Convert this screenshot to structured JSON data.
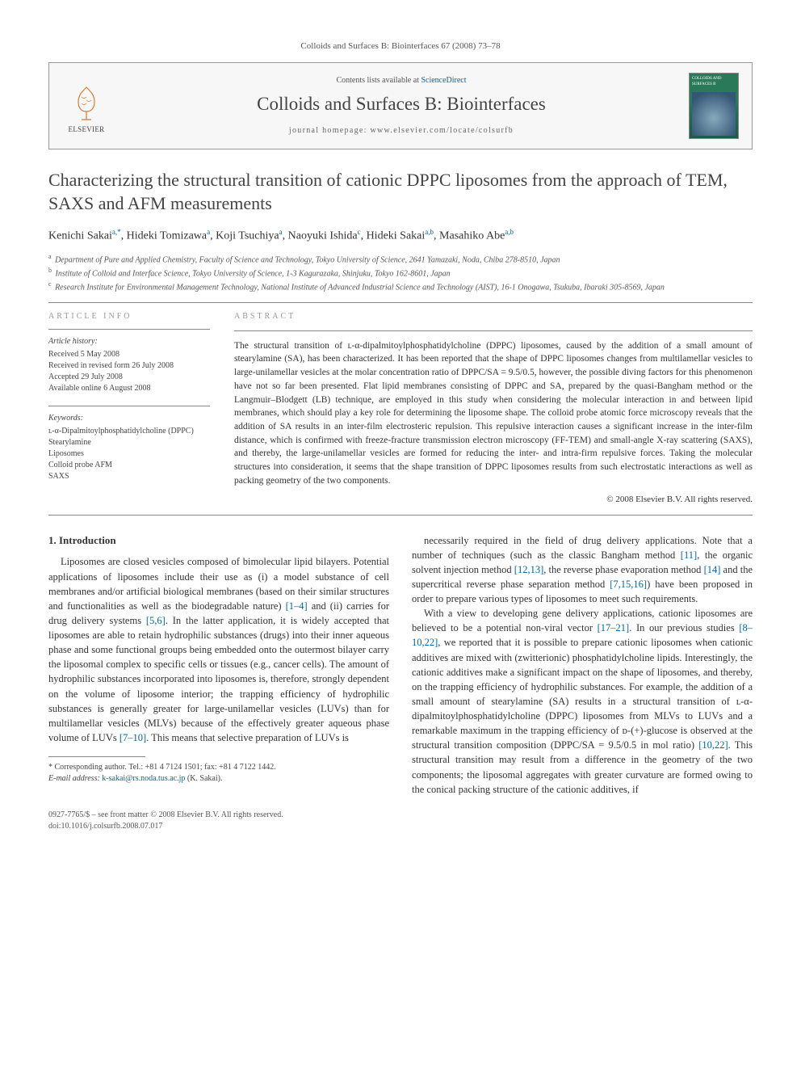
{
  "running_head": "Colloids and Surfaces B: Biointerfaces 67 (2008) 73–78",
  "topbox": {
    "contents_prefix": "Contents lists available at ",
    "contents_link": "ScienceDirect",
    "journal_name": "Colloids and Surfaces B: Biointerfaces",
    "homepage_label": "journal homepage: ",
    "homepage_url": "www.elsevier.com/locate/colsurfb",
    "publisher_logo_text": "ELSEVIER",
    "cover_title": "COLLOIDS AND SURFACES B"
  },
  "title": "Characterizing the structural transition of cationic DPPC liposomes from the approach of TEM, SAXS and AFM measurements",
  "authors_html": "Kenichi Sakai<sup>a,*</sup>, Hideki Tomizawa<sup>a</sup>, Koji Tsuchiya<sup>a</sup>, Naoyuki Ishida<sup>c</sup>, Hideki Sakai<sup>a,b</sup>, Masahiko Abe<sup>a,b</sup>",
  "affiliations": [
    {
      "sup": "a",
      "text": "Department of Pure and Applied Chemistry, Faculty of Science and Technology, Tokyo University of Science, 2641 Yamazaki, Noda, Chiba 278-8510, Japan"
    },
    {
      "sup": "b",
      "text": "Institute of Colloid and Interface Science, Tokyo University of Science, 1-3 Kagurazaka, Shinjuku, Tokyo 162-8601, Japan"
    },
    {
      "sup": "c",
      "text": "Research Institute for Environmental Management Technology, National Institute of Advanced Industrial Science and Technology (AIST), 16-1 Onogawa, Tsukuba, Ibaraki 305-8569, Japan"
    }
  ],
  "article_info": {
    "heading": "ARTICLE INFO",
    "history_title": "Article history:",
    "history": [
      "Received 5 May 2008",
      "Received in revised form 26 July 2008",
      "Accepted 29 July 2008",
      "Available online 6 August 2008"
    ],
    "keywords_title": "Keywords:",
    "keywords": [
      "ʟ-α-Dipalmitoylphosphatidylcholine (DPPC)",
      "Stearylamine",
      "Liposomes",
      "Colloid probe AFM",
      "SAXS"
    ]
  },
  "abstract": {
    "heading": "ABSTRACT",
    "text": "The structural transition of ʟ-α-dipalmitoylphosphatidylcholine (DPPC) liposomes, caused by the addition of a small amount of stearylamine (SA), has been characterized. It has been reported that the shape of DPPC liposomes changes from multilamellar vesicles to large-unilamellar vesicles at the molar concentration ratio of DPPC/SA = 9.5/0.5, however, the possible diving factors for this phenomenon have not so far been presented. Flat lipid membranes consisting of DPPC and SA, prepared by the quasi-Bangham method or the Langmuir–Blodgett (LB) technique, are employed in this study when considering the molecular interaction in and between lipid membranes, which should play a key role for determining the liposome shape. The colloid probe atomic force microscopy reveals that the addition of SA results in an inter-film electrosteric repulsion. This repulsive interaction causes a significant increase in the inter-film distance, which is confirmed with freeze-fracture transmission electron microscopy (FF-TEM) and small-angle X-ray scattering (SAXS), and thereby, the large-unilamellar vesicles are formed for reducing the inter- and intra-firm repulsive forces. Taking the molecular structures into consideration, it seems that the shape transition of DPPC liposomes results from such electrostatic interactions as well as packing geometry of the two components.",
    "copyright": "© 2008 Elsevier B.V. All rights reserved."
  },
  "body": {
    "section_heading": "1. Introduction",
    "para1": "Liposomes are closed vesicles composed of bimolecular lipid bilayers. Potential applications of liposomes include their use as (i) a model substance of cell membranes and/or artificial biological membranes (based on their similar structures and functionalities as well as the biodegradable nature) [1–4] and (ii) carries for drug delivery systems [5,6]. In the latter application, it is widely accepted that liposomes are able to retain hydrophilic substances (drugs) into their inner aqueous phase and some functional groups being embedded onto the outermost bilayer carry the liposomal complex to specific cells or tissues (e.g., cancer cells). The amount of hydrophilic substances incorporated into liposomes is, therefore, strongly dependent on the volume of liposome interior; the trapping efficiency of hydrophilic substances is generally greater for large-unilamellar vesicles (LUVs) than for multilamellar vesicles (MLVs) because of the effectively greater aqueous phase volume of LUVs [7–10]. This means that selective preparation of LUVs is",
    "para2": "necessarily required in the field of drug delivery applications. Note that a number of techniques (such as the classic Bangham method [11], the organic solvent injection method [12,13], the reverse phase evaporation method [14] and the supercritical reverse phase separation method [7,15,16]) have been proposed in order to prepare various types of liposomes to meet such requirements.",
    "para3": "With a view to developing gene delivery applications, cationic liposomes are believed to be a potential non-viral vector [17–21]. In our previous studies [8–10,22], we reported that it is possible to prepare cationic liposomes when cationic additives are mixed with (zwitterionic) phosphatidylcholine lipids. Interestingly, the cationic additives make a significant impact on the shape of liposomes, and thereby, on the trapping efficiency of hydrophilic substances. For example, the addition of a small amount of stearylamine (SA) results in a structural transition of ʟ-α-dipalmitoylphosphatidylcholine (DPPC) liposomes from MLVs to LUVs and a remarkable maximum in the trapping efficiency of ᴅ-(+)-glucose is observed at the structural transition composition (DPPC/SA = 9.5/0.5 in mol ratio) [10,22]. This structural transition may result from a difference in the geometry of the two components; the liposomal aggregates with greater curvature are formed owing to the conical packing structure of the cationic additives, if"
  },
  "footnotes": {
    "corr": "* Corresponding author. Tel.: +81 4 7124 1501; fax: +81 4 7122 1442.",
    "email_label": "E-mail address: ",
    "email": "k-sakai@rs.noda.tus.ac.jp",
    "email_suffix": " (K. Sakai)."
  },
  "bottom": {
    "left1": "0927-7765/$ – see front matter © 2008 Elsevier B.V. All rights reserved.",
    "left2": "doi:10.1016/j.colsurfb.2008.07.017"
  },
  "colors": {
    "link": "#0066aa",
    "text": "#333333",
    "muted": "#555555",
    "rule": "#888888",
    "topbox_bg": "#f7f7f7",
    "cover_green1": "#2a7a5a",
    "cover_green2": "#1a5a4a",
    "logo_orange": "#d97a2b"
  }
}
